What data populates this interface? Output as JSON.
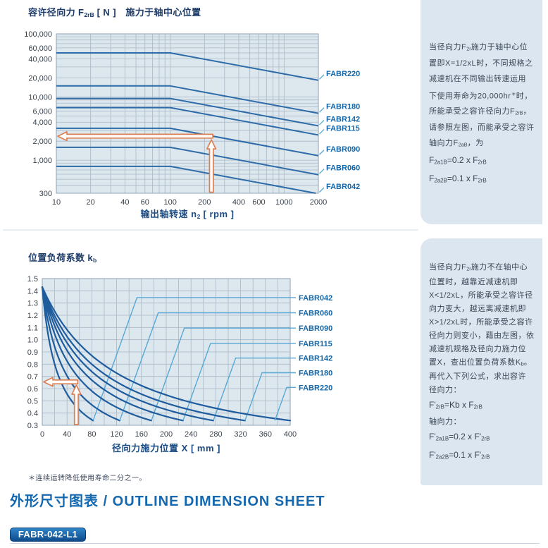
{
  "colors": {
    "accent_blue": "#1565a8",
    "navy": "#1c3b68",
    "curve": "#2d6ca8",
    "curve_dark": "#1f5c9e",
    "callout": "#57a8d6",
    "plot_bg": "#dde7ee",
    "grid": "#a9b8c6",
    "plot_border": "#8ba1b4",
    "panel_bg": "#dce6f0",
    "arrow_orange": "#dd7f55",
    "heading_blue": "#1468b0",
    "badge_blue": "#0d4b8c"
  },
  "chart_data": [
    {
      "type": "line",
      "title": "容许径向力 F2rB [ N ] 施力于轴中心位置",
      "title_rich": [
        {
          "t": "容许径向力 F"
        },
        {
          "t": "2rB",
          "v": "sub"
        },
        {
          "t": " [ N ]　施力于轴中心位置"
        }
      ],
      "xlabel": "输出轴转速 n2 [ rpm ]",
      "xlabel_rich": [
        {
          "t": "输出轴转速 n"
        },
        {
          "t": "2",
          "v": "sub"
        },
        {
          "t": " [ rpm ]"
        }
      ],
      "ylabel": "容许径向力 F2rB [N]",
      "x_scale": "log",
      "y_scale": "log",
      "xlim": [
        10,
        2000
      ],
      "ylim": [
        300,
        100000
      ],
      "x_ticks": [
        10,
        20,
        40,
        60,
        100,
        200,
        400,
        600,
        1000,
        2000
      ],
      "y_ticks": [
        100000,
        60000,
        40000,
        20000,
        10000,
        6000,
        4000,
        2000,
        1000,
        300
      ],
      "grid": "log-minor",
      "legend_position": "right-labels",
      "knee_rpm": 100,
      "decline_exponent": -0.333,
      "series": [
        {
          "name": "FABR220",
          "flat_value": 50000,
          "value_at_2000rpm": 18400
        },
        {
          "name": "FABR180",
          "flat_value": 15000,
          "value_at_2000rpm": 5530
        },
        {
          "name": "FABR142",
          "flat_value": 9500,
          "value_at_2000rpm": 3500
        },
        {
          "name": "FABR115",
          "flat_value": 6800,
          "value_at_2000rpm": 2505
        },
        {
          "name": "FABR090",
          "flat_value": 3200,
          "value_at_2000rpm": 1180
        },
        {
          "name": "FABR060",
          "flat_value": 1600,
          "value_at_2000rpm": 590
        },
        {
          "name": "FABR042",
          "flat_value": 800,
          "value_at_2000rpm": 300
        }
      ],
      "annotation": {
        "type": "guide-arrow",
        "rpm": 230,
        "force_n": 2400
      }
    },
    {
      "type": "line",
      "title": "位置负荷系数 kb",
      "title_rich": [
        {
          "t": "位置负荷系数 k"
        },
        {
          "t": "b",
          "v": "sub"
        }
      ],
      "xlabel": "径向力施力位置 X [ mm ]",
      "xlabel_rich": [
        {
          "t": "径向力施力位置 X [ mm ]"
        }
      ],
      "x_scale": "linear",
      "y_scale": "linear",
      "xlim": [
        0,
        400
      ],
      "ylim": [
        0.3,
        1.5
      ],
      "x_ticks": [
        0,
        40,
        80,
        120,
        160,
        200,
        240,
        280,
        320,
        360,
        400
      ],
      "y_ticks": [
        1.5,
        1.4,
        1.3,
        1.2,
        1.1,
        1.0,
        0.9,
        0.8,
        0.7,
        0.6,
        0.5,
        0.4,
        0.3
      ],
      "x_grid_step": 20,
      "y_grid_step": 0.1,
      "legend_position": "right-labels",
      "series": [
        {
          "name": "FABR042",
          "start_kb": 1.43,
          "end_x_mm": 82,
          "end_kb": 0.34,
          "label_level_kb": 1.345
        },
        {
          "name": "FABR060",
          "start_kb": 1.43,
          "end_x_mm": 125,
          "end_kb": 0.34,
          "label_level_kb": 1.22
        },
        {
          "name": "FABR090",
          "start_kb": 1.43,
          "end_x_mm": 176,
          "end_kb": 0.34,
          "label_level_kb": 1.095
        },
        {
          "name": "FABR115",
          "start_kb": 1.43,
          "end_x_mm": 227,
          "end_kb": 0.34,
          "label_level_kb": 0.97
        },
        {
          "name": "FABR142",
          "start_kb": 1.43,
          "end_x_mm": 276,
          "end_kb": 0.34,
          "label_level_kb": 0.85
        },
        {
          "name": "FABR180",
          "start_kb": 1.43,
          "end_x_mm": 327,
          "end_kb": 0.34,
          "label_level_kb": 0.73
        },
        {
          "name": "FABR220",
          "start_kb": 1.43,
          "end_x_mm": 400,
          "end_kb": 0.34,
          "label_level_kb": 0.61
        }
      ],
      "annotation": {
        "type": "guide-arrow",
        "x_mm": 55,
        "kb": 0.655
      }
    }
  ],
  "side_panels": {
    "top": {
      "lines": [
        [
          {
            "t": "当径向力F"
          },
          {
            "t": "2r",
            "v": "sub"
          },
          {
            "t": "施力于轴中心位"
          }
        ],
        [
          {
            "t": "置即X=1/2xL时，不同规格之"
          }
        ],
        [
          {
            "t": "减速机在不同输出转速运用"
          }
        ],
        [
          {
            "t": "下使用寿命为20,000hr"
          },
          {
            "t": "＊",
            "v": "sup"
          },
          {
            "t": "时，"
          }
        ],
        [
          {
            "t": "所能承受之容许径向力F"
          },
          {
            "t": "2rB",
            "v": "sub"
          },
          {
            "t": "，"
          }
        ],
        [
          {
            "t": "请参照左图，而能承受之容许"
          }
        ],
        [
          {
            "t": "轴向力F"
          },
          {
            "t": "2aB",
            "v": "sub"
          },
          {
            "t": "，为"
          }
        ],
        {
          "f": true,
          "seg": [
            {
              "t": "F"
            },
            {
              "t": "2a1B",
              "v": "sub"
            },
            {
              "t": "=0.2 x F"
            },
            {
              "t": "2rB",
              "v": "sub"
            }
          ]
        },
        {
          "f": true,
          "seg": [
            {
              "t": "F"
            },
            {
              "t": "2a2B",
              "v": "sub"
            },
            {
              "t": "=0.1 x F"
            },
            {
              "t": "2rB",
              "v": "sub"
            }
          ]
        }
      ]
    },
    "bottom": {
      "lines": [
        [
          {
            "t": "当径向力F"
          },
          {
            "t": "2r",
            "v": "sub"
          },
          {
            "t": "施力不在轴中心"
          }
        ],
        [
          {
            "t": "位置时，越靠近减速机即"
          }
        ],
        [
          {
            "t": "X<1/2xL，所能承受之容许径"
          }
        ],
        [
          {
            "t": "向力变大，越远离减速机即"
          }
        ],
        [
          {
            "t": "X>1/2xL时，所能承受之容许"
          }
        ],
        [
          {
            "t": "径向力则变小，藉由左图，依"
          }
        ],
        [
          {
            "t": "减速机规格及径向力施力位"
          }
        ],
        [
          {
            "t": "置X，查出位置负荷系数K"
          },
          {
            "t": "b",
            "v": "sub"
          },
          {
            "t": "。"
          }
        ],
        [
          {
            "t": "再代入下列公式，求出容许"
          }
        ],
        [
          {
            "t": "径向力："
          }
        ],
        {
          "f": true,
          "seg": [
            {
              "t": "F'"
            },
            {
              "t": "2rB",
              "v": "sub"
            },
            {
              "t": "=Kb x F"
            },
            {
              "t": "2rB",
              "v": "sub"
            }
          ]
        },
        [
          {
            "t": "轴向力："
          }
        ],
        {
          "f": true,
          "seg": [
            {
              "t": "F'"
            },
            {
              "t": "2a1B",
              "v": "sub"
            },
            {
              "t": "=0.2 x F'"
            },
            {
              "t": "2rB",
              "v": "sub"
            }
          ]
        },
        {
          "f": true,
          "seg": [
            {
              "t": "F'"
            },
            {
              "t": "2a2B",
              "v": "sub"
            },
            {
              "t": "=0.1 x F'"
            },
            {
              "t": "2rB",
              "v": "sub"
            }
          ]
        }
      ]
    }
  },
  "footer": {
    "note": "＊连续运转降低使用寿命二分之一。",
    "heading": "外形尺寸图表 / OUTLINE DIMENSION SHEET",
    "badge": "FABR-042-L1"
  }
}
